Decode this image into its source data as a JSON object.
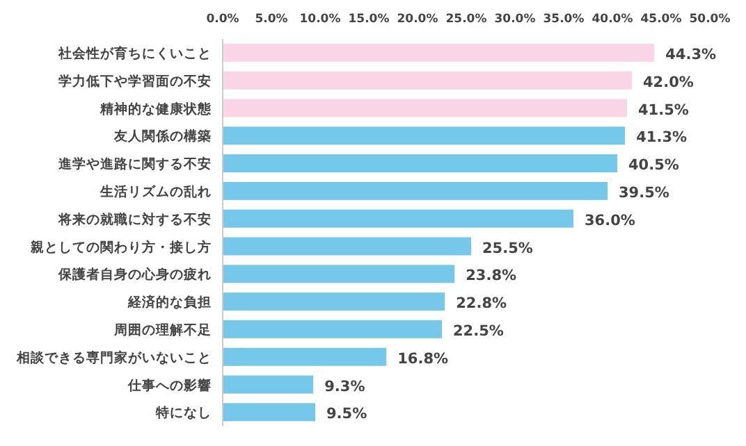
{
  "chart_data": {
    "type": "bar",
    "orientation": "horizontal",
    "categories": [
      "社会性が育ちにくいこと",
      "学力低下や学習面の不安",
      "精神的な健康状態",
      "友人関係の構築",
      "進学や進路に関する不安",
      "生活リズムの乱れ",
      "将来の就職に対する不安",
      "親としての関わり方・接し方",
      "保護者自身の心身の疲れ",
      "経済的な負担",
      "周囲の理解不足",
      "相談できる専門家がいないこと",
      "仕事への影響",
      "特になし"
    ],
    "values": [
      44.3,
      42.0,
      41.5,
      41.3,
      40.5,
      39.5,
      36.0,
      25.5,
      23.8,
      22.8,
      22.5,
      16.8,
      9.3,
      9.5
    ],
    "value_labels": [
      "44.3%",
      "42.0%",
      "41.5%",
      "41.3%",
      "40.5%",
      "39.5%",
      "36.0%",
      "25.5%",
      "23.8%",
      "22.8%",
      "22.5%",
      "16.8%",
      "9.3%",
      "9.5%"
    ],
    "colors": [
      "#f9d5e5",
      "#f9d5e5",
      "#f9d5e5",
      "#75c8ea",
      "#75c8ea",
      "#75c8ea",
      "#75c8ea",
      "#75c8ea",
      "#75c8ea",
      "#75c8ea",
      "#75c8ea",
      "#75c8ea",
      "#75c8ea",
      "#75c8ea"
    ],
    "xlim": [
      0,
      50
    ],
    "xticks": [
      {
        "value": 0,
        "label": "0.0%"
      },
      {
        "value": 5,
        "label": "5.0%"
      },
      {
        "value": 10,
        "label": "10.0%"
      },
      {
        "value": 15,
        "label": "15.0%"
      },
      {
        "value": 20,
        "label": "20.0%"
      },
      {
        "value": 25,
        "label": "25.0%"
      },
      {
        "value": 30,
        "label": "30.0%"
      },
      {
        "value": 35,
        "label": "35.0%"
      },
      {
        "value": 40,
        "label": "40.0%"
      },
      {
        "value": 45,
        "label": "45.0%"
      },
      {
        "value": 50,
        "label": "50.0%"
      }
    ]
  }
}
